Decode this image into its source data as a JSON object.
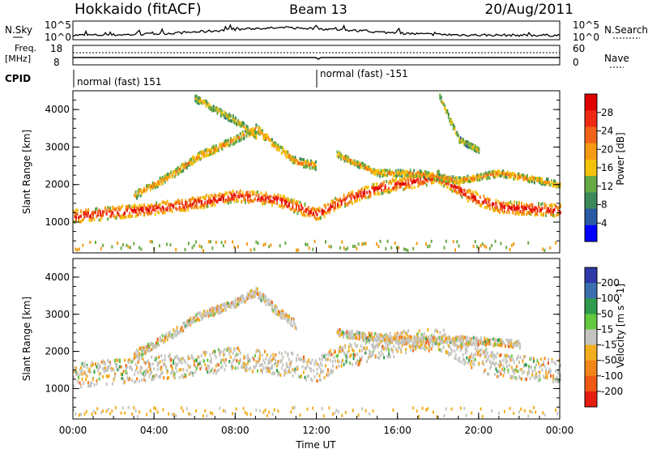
{
  "header": {
    "title_left": "Hokkaido (fitACF)",
    "title_center": "Beam 13",
    "title_right": "20/Aug/2011"
  },
  "panels": {
    "nsky_label": "N.Sky",
    "nsearch_label": "N.Search",
    "freq_label_1": "Freq.",
    "freq_label_2": "[MHz]",
    "nave_label": "Nave",
    "cpid_label": "CPID",
    "nsky_ticks": [
      "10^5",
      "10^0"
    ],
    "nsearch_ticks": [
      "10^5",
      "10^0"
    ],
    "freq_ticks": [
      "18",
      "8"
    ],
    "nave_ticks": [
      "60",
      "0"
    ],
    "cpid_segments": [
      {
        "label": "normal (fast) 151",
        "start_hour": 0
      },
      {
        "label": "normal (fast) -151",
        "start_hour": 12
      }
    ]
  },
  "colors": {
    "power_scale": [
      "#0000ff",
      "#2a5aa6",
      "#3a8a5a",
      "#66aa44",
      "#f4c20a",
      "#f59a12",
      "#f2631a",
      "#ef2a14",
      "#e00000"
    ],
    "velocity_scale": [
      "#2e3aa8",
      "#3b6fb0",
      "#2e9c4c",
      "#64c840",
      "#c4c4c0",
      "#f2ae1e",
      "#f2851a",
      "#ee5a14",
      "#e61e10"
    ]
  },
  "chart_data": [
    {
      "type": "heatmap",
      "name": "power",
      "ylabel": "Slant Range [km]",
      "colorbar_label": "Power [dB]",
      "colorbar_ticks": [
        "28",
        "24",
        "20",
        "16",
        "12",
        "8",
        "4"
      ],
      "ylim": [
        180,
        4500
      ],
      "yticks": [
        "1000",
        "2000",
        "3000",
        "4000"
      ],
      "xlim": [
        0,
        24
      ],
      "bands": [
        {
          "center": [
            [
              0,
              1150
            ],
            [
              2,
              1250
            ],
            [
              4,
              1350
            ],
            [
              6,
              1500
            ],
            [
              8,
              1700
            ],
            [
              10,
              1600
            ],
            [
              12,
              1200
            ],
            [
              13,
              1500
            ],
            [
              15,
              1900
            ],
            [
              17,
              2100
            ],
            [
              18,
              2200
            ],
            [
              19.5,
              1700
            ],
            [
              21,
              1400
            ],
            [
              24,
              1300
            ]
          ],
          "width_km": 320,
          "level": 28
        },
        {
          "center": [
            [
              3,
              1700
            ],
            [
              5,
              2300
            ],
            [
              6,
              2700
            ],
            [
              8,
              3200
            ],
            [
              9,
              3500
            ],
            [
              10,
              3000
            ],
            [
              11,
              2600
            ],
            [
              12,
              2500
            ]
          ],
          "width_km": 200,
          "level": 20
        },
        {
          "center": [
            [
              13,
              2800
            ],
            [
              15,
              2300
            ],
            [
              17,
              2300
            ],
            [
              19,
              2100
            ],
            [
              21,
              2300
            ],
            [
              24,
              2000
            ]
          ],
          "width_km": 160,
          "level": 20
        },
        {
          "center": [
            [
              6,
              4300
            ],
            [
              7,
              4000
            ],
            [
              8,
              3700
            ],
            [
              9,
              3300
            ]
          ],
          "width_km": 180,
          "level": 16
        },
        {
          "center": [
            [
              18,
              4400
            ],
            [
              18.5,
              3800
            ],
            [
              19,
              3200
            ],
            [
              20,
              2900
            ]
          ],
          "width_km": 140,
          "level": 16
        }
      ]
    },
    {
      "type": "heatmap",
      "name": "velocity",
      "ylabel": "Slant Range [km]",
      "colorbar_label": "Velocity [m s^-1]",
      "colorbar_ticks": [
        "200",
        "100",
        "50",
        "15",
        "-15",
        "-50",
        "-100",
        "-200"
      ],
      "ylim": [
        180,
        4500
      ],
      "yticks": [
        "1000",
        "2000",
        "3000",
        "4000"
      ],
      "xlim": [
        0,
        24
      ],
      "bands": [
        {
          "center": [
            [
              0,
              1350
            ],
            [
              2,
              1450
            ],
            [
              4,
              1550
            ],
            [
              6,
              1650
            ],
            [
              8,
              1800
            ],
            [
              10,
              1700
            ],
            [
              12,
              1500
            ],
            [
              13,
              1800
            ],
            [
              15,
              2100
            ],
            [
              17,
              2300
            ],
            [
              18,
              2350
            ],
            [
              19.5,
              1900
            ],
            [
              21,
              1600
            ],
            [
              24,
              1450
            ]
          ],
          "width_km": 650,
          "level": 0
        },
        {
          "center": [
            [
              3,
              1900
            ],
            [
              5,
              2500
            ],
            [
              6,
              2900
            ],
            [
              8,
              3300
            ],
            [
              9,
              3600
            ],
            [
              10,
              3100
            ],
            [
              11,
              2700
            ]
          ],
          "width_km": 220,
          "level": 0
        },
        {
          "center": [
            [
              13,
              2500
            ],
            [
              16,
              2300
            ],
            [
              19,
              2300
            ],
            [
              22,
              2200
            ]
          ],
          "width_km": 200,
          "level": 0
        }
      ]
    }
  ],
  "axes": {
    "x_ticks": [
      "00:00",
      "04:00",
      "08:00",
      "12:00",
      "16:00",
      "20:00",
      "00:00"
    ],
    "xlabel": "Time UT"
  }
}
